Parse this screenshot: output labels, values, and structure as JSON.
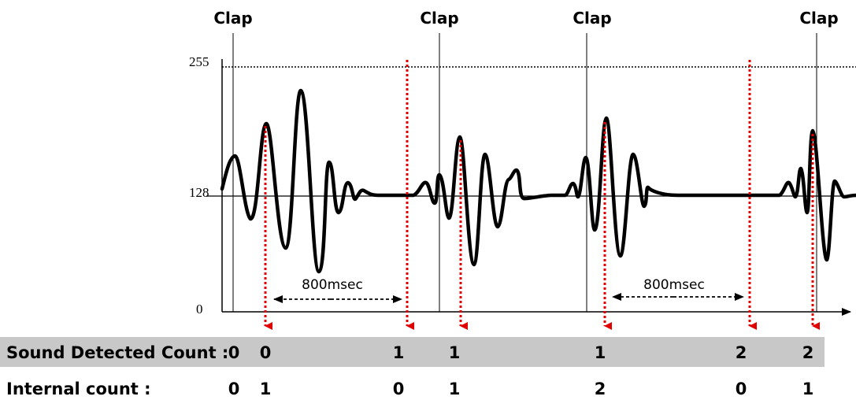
{
  "clap_labels": [
    "Clap",
    "Clap",
    "Clap",
    "Clap"
  ],
  "y_axis": {
    "ticks": [
      "255",
      "128",
      "0"
    ]
  },
  "intervals": [
    {
      "label": "800msec"
    },
    {
      "label": "800msec"
    }
  ],
  "rows": {
    "sound_detected": {
      "label": "Sound Detected Count :",
      "values": [
        "0",
        "0",
        "1",
        "1",
        "1",
        "2",
        "2"
      ]
    },
    "internal": {
      "label": "Internal count :",
      "values": [
        "0",
        "1",
        "0",
        "1",
        "2",
        "0",
        "1"
      ]
    }
  },
  "colors": {
    "waveform": "#000000",
    "detection_marker": "#e00000",
    "row_highlight": "#c8c8c8"
  }
}
